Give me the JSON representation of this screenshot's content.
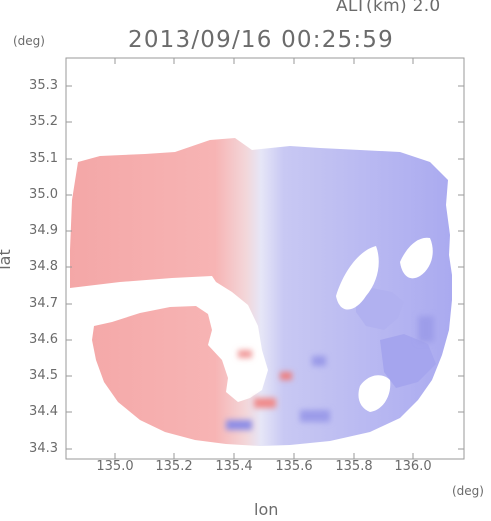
{
  "header": {
    "altitude": "ALT(km) 2.0",
    "timestamp": "2013/09/16 00:25:59"
  },
  "axes": {
    "y_unit": "(deg)",
    "x_unit": "(deg)",
    "y_label": "lat",
    "x_label": "lon",
    "y_ticks": [
      "35.3",
      "35.2",
      "35.1",
      "35.0",
      "34.9",
      "34.8",
      "34.7",
      "34.6",
      "34.5",
      "34.4",
      "34.3"
    ],
    "x_ticks": [
      "135.0",
      "135.2",
      "135.4",
      "135.6",
      "135.8",
      "136.0"
    ],
    "x_range": [
      134.87,
      136.17
    ],
    "y_range": [
      34.28,
      35.38
    ]
  },
  "colors": {
    "frame": "#9a9a9a",
    "positive_tint": "#f4a6a6",
    "negative_tint": "#a9a9f0",
    "neutral": "#e9e9f6"
  }
}
